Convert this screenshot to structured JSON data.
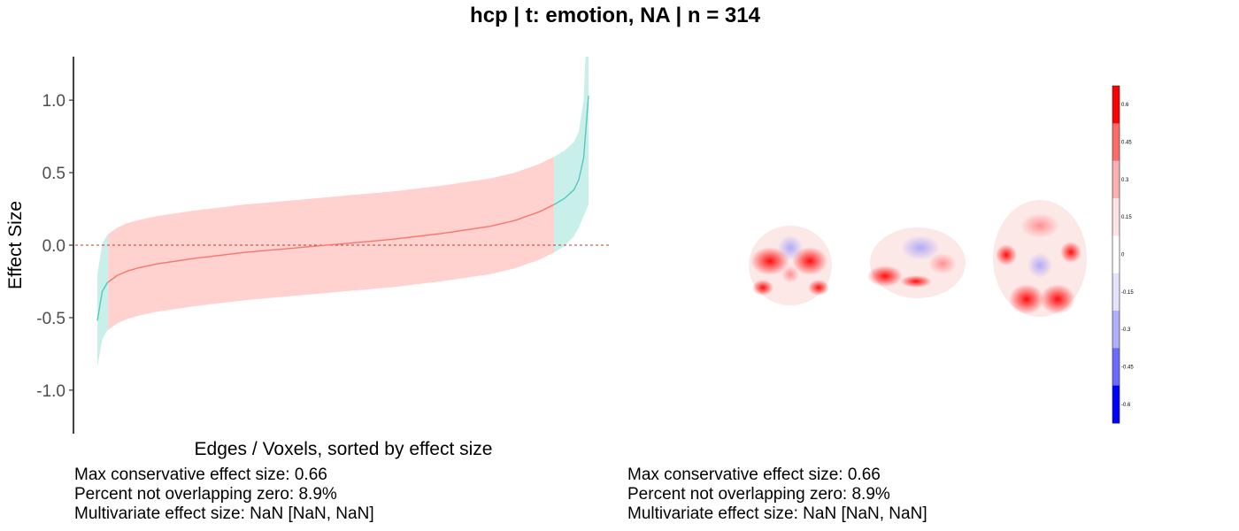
{
  "chart_data": [
    {
      "type": "line",
      "title": "hcp | t: emotion, NA | n = 314",
      "xlabel": "Edges / Voxels, sorted by effect size",
      "ylabel": "Effect Size",
      "ylim": [
        -1.3,
        1.3
      ],
      "yticks": [
        1.0,
        0.5,
        0.0,
        -0.5,
        -1.0
      ],
      "ytick_labels": [
        "1.0",
        "0.5",
        "0.0",
        "-0.5",
        "-1.0"
      ],
      "reference_line": 0,
      "legend": "none",
      "grid": false,
      "x": [
        0.0,
        0.01,
        0.02,
        0.04,
        0.06,
        0.08,
        0.12,
        0.16,
        0.2,
        0.3,
        0.4,
        0.5,
        0.6,
        0.7,
        0.8,
        0.85,
        0.9,
        0.93,
        0.95,
        0.97,
        0.98,
        0.99,
        1.0
      ],
      "series": [
        {
          "values": [
            -0.52,
            -0.32,
            -0.26,
            -0.21,
            -0.18,
            -0.16,
            -0.13,
            -0.11,
            -0.09,
            -0.05,
            -0.02,
            0.01,
            0.04,
            0.08,
            0.13,
            0.17,
            0.23,
            0.28,
            0.32,
            0.38,
            0.45,
            0.6,
            1.03
          ],
          "lower": [
            -0.84,
            -0.65,
            -0.59,
            -0.54,
            -0.51,
            -0.49,
            -0.46,
            -0.44,
            -0.42,
            -0.38,
            -0.35,
            -0.32,
            -0.29,
            -0.25,
            -0.2,
            -0.16,
            -0.1,
            -0.05,
            -0.01,
            0.06,
            0.12,
            0.2,
            0.28
          ],
          "upper": [
            -0.2,
            0.01,
            0.07,
            0.12,
            0.15,
            0.17,
            0.2,
            0.22,
            0.24,
            0.28,
            0.31,
            0.34,
            0.37,
            0.41,
            0.46,
            0.5,
            0.56,
            0.61,
            0.65,
            0.71,
            0.78,
            1.0,
            1.78
          ]
        }
      ],
      "significant_regions": [
        [
          0.0,
          0.02
        ],
        [
          0.93,
          1.0
        ]
      ],
      "colors": {
        "line_nonsig": "#f8766d",
        "band_nonsig": "#ffd2d0",
        "line_sig": "#4ecbbd",
        "band_sig": "#c9efeb",
        "reference": "#c0392b"
      }
    }
  ],
  "colorbar": {
    "tick_labels": [
      "0.6",
      "0.45",
      "0.3",
      "0.15",
      "0",
      "-0.15",
      "-0.3",
      "-0.45",
      "-0.6"
    ],
    "colors": [
      "#ff0000",
      "#ff6b6b",
      "#ffb0b0",
      "#ffe3e3",
      "#ffffff",
      "#e3e3ff",
      "#b0b0ff",
      "#6b6bff",
      "#0000ff"
    ]
  },
  "stats_left": [
    "Max conservative effect size: 0.66",
    "Percent not overlapping zero: 8.9%",
    "Multivariate effect size: NaN [NaN, NaN]"
  ],
  "stats_right": [
    "Max conservative effect size: 0.66",
    "Percent not overlapping zero: 8.9%",
    "Multivariate effect size: NaN [NaN, NaN]"
  ]
}
